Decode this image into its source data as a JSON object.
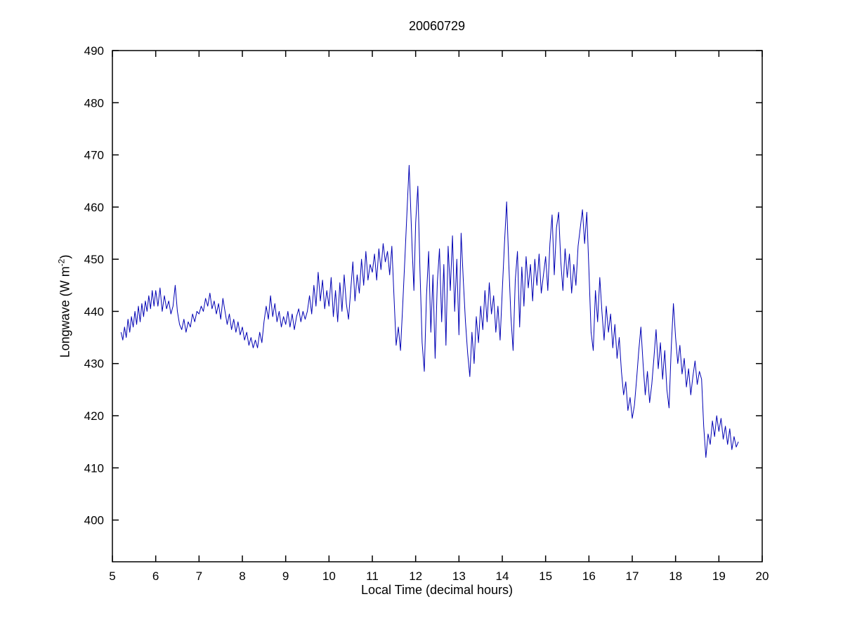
{
  "figure": {
    "background": "#ffffff"
  },
  "chart_data": {
    "type": "line",
    "title": "20060729",
    "xlabel": "Local Time (decimal hours)",
    "ylabel": "Longwave (W m-2)",
    "ylabel_parts": {
      "prefix": "Longwave (W m",
      "sup": "-2",
      "suffix": ")"
    },
    "xlim": [
      5,
      20
    ],
    "ylim": [
      392,
      490
    ],
    "xticks": [
      5,
      6,
      7,
      8,
      9,
      10,
      11,
      12,
      13,
      14,
      15,
      16,
      17,
      18,
      19,
      20
    ],
    "yticks": [
      400,
      410,
      420,
      430,
      440,
      450,
      460,
      470,
      480,
      490
    ],
    "grid": false,
    "legend": null,
    "line_color": "#0000b4",
    "axis_color": "#000000",
    "points": [
      [
        5.2,
        436
      ],
      [
        5.24,
        434.5
      ],
      [
        5.28,
        437
      ],
      [
        5.32,
        435
      ],
      [
        5.36,
        438.5
      ],
      [
        5.4,
        436
      ],
      [
        5.44,
        439
      ],
      [
        5.48,
        437
      ],
      [
        5.52,
        440
      ],
      [
        5.56,
        437.5
      ],
      [
        5.6,
        441
      ],
      [
        5.64,
        438
      ],
      [
        5.68,
        441.5
      ],
      [
        5.72,
        439
      ],
      [
        5.76,
        442
      ],
      [
        5.8,
        440
      ],
      [
        5.84,
        443
      ],
      [
        5.88,
        440.5
      ],
      [
        5.92,
        444
      ],
      [
        5.96,
        441
      ],
      [
        6.0,
        444
      ],
      [
        6.05,
        441
      ],
      [
        6.1,
        444.5
      ],
      [
        6.15,
        440
      ],
      [
        6.2,
        443
      ],
      [
        6.25,
        440.5
      ],
      [
        6.3,
        442
      ],
      [
        6.35,
        439.5
      ],
      [
        6.4,
        441
      ],
      [
        6.45,
        445
      ],
      [
        6.5,
        440
      ],
      [
        6.55,
        437.5
      ],
      [
        6.6,
        436.5
      ],
      [
        6.65,
        438.5
      ],
      [
        6.7,
        436
      ],
      [
        6.75,
        438
      ],
      [
        6.8,
        437
      ],
      [
        6.85,
        439.5
      ],
      [
        6.9,
        438
      ],
      [
        6.95,
        440
      ],
      [
        7.0,
        439.5
      ],
      [
        7.05,
        441
      ],
      [
        7.1,
        440
      ],
      [
        7.15,
        442.5
      ],
      [
        7.2,
        441
      ],
      [
        7.25,
        443.5
      ],
      [
        7.3,
        440.5
      ],
      [
        7.35,
        442
      ],
      [
        7.4,
        439.5
      ],
      [
        7.45,
        441.5
      ],
      [
        7.5,
        438.5
      ],
      [
        7.55,
        442.5
      ],
      [
        7.6,
        440
      ],
      [
        7.65,
        437.5
      ],
      [
        7.7,
        439.5
      ],
      [
        7.75,
        436.5
      ],
      [
        7.8,
        438.5
      ],
      [
        7.85,
        436
      ],
      [
        7.9,
        438
      ],
      [
        7.95,
        435.5
      ],
      [
        8.0,
        437
      ],
      [
        8.05,
        434.5
      ],
      [
        8.1,
        436
      ],
      [
        8.15,
        433.5
      ],
      [
        8.2,
        435
      ],
      [
        8.25,
        433
      ],
      [
        8.3,
        434.5
      ],
      [
        8.35,
        433
      ],
      [
        8.4,
        436
      ],
      [
        8.45,
        434
      ],
      [
        8.5,
        438
      ],
      [
        8.55,
        441
      ],
      [
        8.6,
        438.5
      ],
      [
        8.65,
        443
      ],
      [
        8.7,
        439
      ],
      [
        8.75,
        441.5
      ],
      [
        8.8,
        438
      ],
      [
        8.85,
        440
      ],
      [
        8.9,
        437
      ],
      [
        8.95,
        439
      ],
      [
        9.0,
        437.5
      ],
      [
        9.05,
        440
      ],
      [
        9.1,
        437
      ],
      [
        9.15,
        439.5
      ],
      [
        9.2,
        436.5
      ],
      [
        9.25,
        439
      ],
      [
        9.3,
        440.5
      ],
      [
        9.35,
        438
      ],
      [
        9.4,
        440
      ],
      [
        9.45,
        438.5
      ],
      [
        9.5,
        440
      ],
      [
        9.55,
        443
      ],
      [
        9.6,
        439.5
      ],
      [
        9.65,
        445
      ],
      [
        9.7,
        441
      ],
      [
        9.75,
        447.5
      ],
      [
        9.8,
        442
      ],
      [
        9.85,
        446
      ],
      [
        9.9,
        440.5
      ],
      [
        9.95,
        444
      ],
      [
        10.0,
        441
      ],
      [
        10.05,
        446.5
      ],
      [
        10.1,
        439
      ],
      [
        10.15,
        444
      ],
      [
        10.2,
        438
      ],
      [
        10.25,
        445.5
      ],
      [
        10.3,
        440
      ],
      [
        10.35,
        447
      ],
      [
        10.4,
        441.5
      ],
      [
        10.45,
        438.5
      ],
      [
        10.5,
        444
      ],
      [
        10.55,
        449.5
      ],
      [
        10.6,
        442
      ],
      [
        10.65,
        447
      ],
      [
        10.7,
        443.5
      ],
      [
        10.75,
        450
      ],
      [
        10.8,
        445
      ],
      [
        10.85,
        451.5
      ],
      [
        10.9,
        446
      ],
      [
        10.95,
        449
      ],
      [
        11.0,
        447.5
      ],
      [
        11.05,
        451
      ],
      [
        11.1,
        446
      ],
      [
        11.15,
        452
      ],
      [
        11.2,
        448
      ],
      [
        11.25,
        453
      ],
      [
        11.3,
        449.5
      ],
      [
        11.35,
        451.5
      ],
      [
        11.4,
        447
      ],
      [
        11.45,
        452.5
      ],
      [
        11.5,
        443
      ],
      [
        11.55,
        433.5
      ],
      [
        11.6,
        437
      ],
      [
        11.65,
        432.5
      ],
      [
        11.7,
        441
      ],
      [
        11.75,
        450
      ],
      [
        11.8,
        459
      ],
      [
        11.85,
        468
      ],
      [
        11.88,
        461
      ],
      [
        11.92,
        452
      ],
      [
        11.96,
        444
      ],
      [
        12.0,
        457
      ],
      [
        12.05,
        464
      ],
      [
        12.1,
        448
      ],
      [
        12.15,
        434
      ],
      [
        12.2,
        428.5
      ],
      [
        12.25,
        443
      ],
      [
        12.3,
        451.5
      ],
      [
        12.35,
        436
      ],
      [
        12.4,
        447
      ],
      [
        12.45,
        431
      ],
      [
        12.5,
        445.5
      ],
      [
        12.55,
        452
      ],
      [
        12.6,
        438
      ],
      [
        12.65,
        449
      ],
      [
        12.7,
        433.5
      ],
      [
        12.75,
        452.5
      ],
      [
        12.8,
        444
      ],
      [
        12.85,
        454.5
      ],
      [
        12.9,
        440
      ],
      [
        12.95,
        450
      ],
      [
        13.0,
        435.5
      ],
      [
        13.05,
        455
      ],
      [
        13.1,
        446
      ],
      [
        13.15,
        438
      ],
      [
        13.2,
        432
      ],
      [
        13.25,
        427.5
      ],
      [
        13.3,
        436
      ],
      [
        13.35,
        430
      ],
      [
        13.4,
        439
      ],
      [
        13.45,
        434
      ],
      [
        13.5,
        441
      ],
      [
        13.55,
        436.5
      ],
      [
        13.6,
        444
      ],
      [
        13.65,
        438
      ],
      [
        13.7,
        445.5
      ],
      [
        13.75,
        439.5
      ],
      [
        13.8,
        443
      ],
      [
        13.85,
        436
      ],
      [
        13.9,
        441
      ],
      [
        13.95,
        434.5
      ],
      [
        14.0,
        444
      ],
      [
        14.05,
        453
      ],
      [
        14.1,
        461
      ],
      [
        14.15,
        449
      ],
      [
        14.2,
        439
      ],
      [
        14.25,
        432.5
      ],
      [
        14.3,
        446
      ],
      [
        14.35,
        451.5
      ],
      [
        14.4,
        437
      ],
      [
        14.45,
        448.5
      ],
      [
        14.5,
        441
      ],
      [
        14.55,
        450.5
      ],
      [
        14.6,
        444.5
      ],
      [
        14.65,
        449
      ],
      [
        14.7,
        442
      ],
      [
        14.75,
        450
      ],
      [
        14.8,
        445
      ],
      [
        14.85,
        451
      ],
      [
        14.9,
        443.5
      ],
      [
        14.95,
        447
      ],
      [
        15.0,
        450.5
      ],
      [
        15.05,
        444
      ],
      [
        15.1,
        453
      ],
      [
        15.15,
        458.5
      ],
      [
        15.2,
        447
      ],
      [
        15.25,
        456
      ],
      [
        15.3,
        459
      ],
      [
        15.35,
        449.5
      ],
      [
        15.4,
        444
      ],
      [
        15.45,
        452
      ],
      [
        15.5,
        446.5
      ],
      [
        15.55,
        451
      ],
      [
        15.6,
        443.5
      ],
      [
        15.65,
        449
      ],
      [
        15.7,
        445
      ],
      [
        15.75,
        452.5
      ],
      [
        15.8,
        456
      ],
      [
        15.85,
        459.5
      ],
      [
        15.9,
        453
      ],
      [
        15.95,
        459
      ],
      [
        16.0,
        448
      ],
      [
        16.05,
        436
      ],
      [
        16.1,
        432.5
      ],
      [
        16.15,
        444
      ],
      [
        16.2,
        438
      ],
      [
        16.25,
        446.5
      ],
      [
        16.3,
        440
      ],
      [
        16.35,
        434.5
      ],
      [
        16.4,
        441
      ],
      [
        16.45,
        436
      ],
      [
        16.5,
        439.5
      ],
      [
        16.55,
        433
      ],
      [
        16.6,
        437.5
      ],
      [
        16.65,
        431
      ],
      [
        16.7,
        435
      ],
      [
        16.75,
        428.5
      ],
      [
        16.8,
        424
      ],
      [
        16.85,
        426.5
      ],
      [
        16.9,
        421
      ],
      [
        16.95,
        423.5
      ],
      [
        17.0,
        419.5
      ],
      [
        17.05,
        422
      ],
      [
        17.1,
        427
      ],
      [
        17.15,
        432.5
      ],
      [
        17.2,
        437
      ],
      [
        17.25,
        430
      ],
      [
        17.3,
        424
      ],
      [
        17.35,
        428.5
      ],
      [
        17.4,
        422.5
      ],
      [
        17.45,
        426
      ],
      [
        17.5,
        431
      ],
      [
        17.55,
        436.5
      ],
      [
        17.6,
        429
      ],
      [
        17.65,
        434
      ],
      [
        17.7,
        427
      ],
      [
        17.75,
        432.5
      ],
      [
        17.8,
        425
      ],
      [
        17.85,
        421.5
      ],
      [
        17.9,
        433
      ],
      [
        17.95,
        441.5
      ],
      [
        18.0,
        435
      ],
      [
        18.05,
        430
      ],
      [
        18.1,
        433.5
      ],
      [
        18.15,
        428
      ],
      [
        18.2,
        431
      ],
      [
        18.25,
        425.5
      ],
      [
        18.3,
        429
      ],
      [
        18.35,
        424
      ],
      [
        18.4,
        427.5
      ],
      [
        18.45,
        430.5
      ],
      [
        18.5,
        426
      ],
      [
        18.55,
        428.5
      ],
      [
        18.6,
        427
      ],
      [
        18.65,
        418
      ],
      [
        18.7,
        412
      ],
      [
        18.75,
        416.5
      ],
      [
        18.8,
        414.5
      ],
      [
        18.85,
        419
      ],
      [
        18.9,
        416
      ],
      [
        18.95,
        420
      ],
      [
        19.0,
        417
      ],
      [
        19.05,
        419.5
      ],
      [
        19.1,
        415.5
      ],
      [
        19.15,
        418
      ],
      [
        19.2,
        414.5
      ],
      [
        19.25,
        417.5
      ],
      [
        19.3,
        413.5
      ],
      [
        19.35,
        416
      ],
      [
        19.4,
        414
      ],
      [
        19.45,
        415
      ]
    ]
  }
}
